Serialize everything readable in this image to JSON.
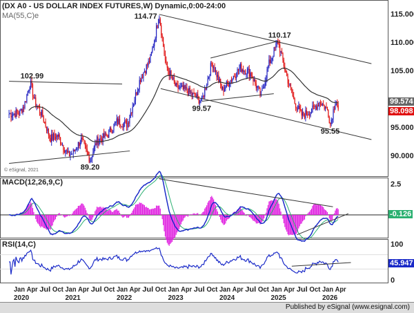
{
  "header": {
    "title": "(DX A0 - US DOLLAR INDEX FUTURES,W) Dynamic,0:00-24:00",
    "ma_label": "MA(55,C)e",
    "esignal_mark": "© eSignal, 2021"
  },
  "footer": {
    "text": "Published by eSignal (www.esignal.com)"
  },
  "colors": {
    "up": "#2020c0",
    "down": "#e01010",
    "ma": "#333333",
    "macd": "#1a2ac8",
    "signal": "#2ab070",
    "hist": "#e020e0",
    "rsi": "#1a2ac8"
  },
  "chart_data": [
    {
      "type": "candlestick",
      "title": "DX A0 - US DOLLAR INDEX FUTURES, Weekly",
      "ylim": [
        88,
        117
      ],
      "yticks": [
        "115.000",
        "110.000",
        "105.000",
        "95.000",
        "90.000"
      ],
      "ytick_values": [
        115,
        110,
        105,
        95,
        90
      ],
      "last_labels": {
        "ma": "99.574",
        "close": "98.098"
      },
      "path": [
        [
          2019.8,
          97.3
        ],
        [
          2020.0,
          97.5
        ],
        [
          2020.1,
          99
        ],
        [
          2020.21,
          102.99
        ],
        [
          2020.3,
          99.5
        ],
        [
          2020.45,
          97
        ],
        [
          2020.6,
          93
        ],
        [
          2020.75,
          93.5
        ],
        [
          2020.95,
          90
        ],
        [
          2021.05,
          90.5
        ],
        [
          2021.2,
          92.8
        ],
        [
          2021.38,
          89.2
        ],
        [
          2021.5,
          92.5
        ],
        [
          2021.7,
          93.5
        ],
        [
          2021.9,
          96
        ],
        [
          2022.1,
          95.5
        ],
        [
          2022.35,
          103.5
        ],
        [
          2022.55,
          107
        ],
        [
          2022.72,
          114.77
        ],
        [
          2022.85,
          106
        ],
        [
          2023.05,
          102
        ],
        [
          2023.25,
          101.5
        ],
        [
          2023.55,
          99.57
        ],
        [
          2023.75,
          106.5
        ],
        [
          2023.95,
          101.5
        ],
        [
          2024.3,
          105.5
        ],
        [
          2024.5,
          104.5
        ],
        [
          2024.7,
          100.5
        ],
        [
          2024.85,
          106
        ],
        [
          2025.03,
          110.17
        ],
        [
          2025.2,
          104
        ],
        [
          2025.35,
          99.5
        ],
        [
          2025.5,
          97
        ],
        [
          2025.7,
          98
        ],
        [
          2025.85,
          99.5
        ],
        [
          2026.0,
          98
        ],
        [
          2026.05,
          95.55
        ],
        [
          2026.15,
          99.8
        ],
        [
          2026.22,
          98.1
        ]
      ],
      "annotations": [
        {
          "text": "114.77",
          "x": 2022.72,
          "y": 114.77
        },
        {
          "text": "110.17",
          "x": 2025.03,
          "y": 110.17
        },
        {
          "text": "102.99",
          "x": 2020.21,
          "y": 102.99
        },
        {
          "text": "99.57",
          "x": 2023.55,
          "y": 99.57
        },
        {
          "text": "95.55",
          "x": 2026.05,
          "y": 95.55
        },
        {
          "text": "89.20",
          "x": 2021.38,
          "y": 89.2
        }
      ],
      "trendlines": [
        [
          [
            2022.72,
            114.9
          ],
          [
            2026.85,
            106.2
          ]
        ],
        [
          [
            2022.75,
            101.8
          ],
          [
            2026.85,
            92.8
          ]
        ],
        [
          [
            2019.8,
            103.1
          ],
          [
            2022.0,
            102.6
          ]
        ],
        [
          [
            2019.8,
            88.6
          ],
          [
            2022.15,
            90.8
          ]
        ],
        [
          [
            2023.55,
            99.57
          ],
          [
            2024.95,
            100.9
          ]
        ],
        [
          [
            2023.72,
            107.2
          ],
          [
            2025.03,
            110.17
          ]
        ]
      ]
    },
    {
      "type": "line",
      "title": "MACD(12,26,9,C)",
      "yticks": [
        "2.5"
      ],
      "last_value": "-0.126"
    },
    {
      "type": "line",
      "title": "RSI(14,C)",
      "yticks": [
        "100",
        "0"
      ],
      "last_value": "45.947"
    }
  ],
  "xaxis": {
    "months": [
      "Jan",
      "Apr",
      "Jul",
      "Oct"
    ],
    "years": [
      "2020",
      "2021",
      "2022",
      "2023",
      "2024",
      "2025",
      "2026"
    ],
    "last_months": [
      "Jan",
      "Apr"
    ]
  }
}
